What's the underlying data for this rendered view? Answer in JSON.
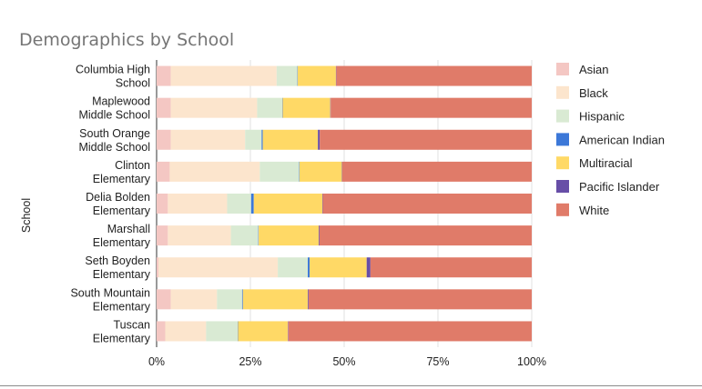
{
  "chart_data": {
    "type": "bar",
    "orientation": "horizontal",
    "stacked": "percent",
    "title": "Demographics by School",
    "xlabel": "",
    "ylabel": "School",
    "xlim": [
      0,
      100
    ],
    "x_ticks": [
      "0%",
      "25%",
      "50%",
      "75%",
      "100%"
    ],
    "grid": true,
    "legend_position": "right",
    "categories": [
      [
        "Columbia High",
        "School"
      ],
      [
        "Maplewood",
        "Middle School"
      ],
      [
        "South Orange",
        "Middle School"
      ],
      [
        "Clinton",
        "Elementary"
      ],
      [
        "Delia Bolden",
        "Elementary"
      ],
      [
        "Marshall",
        "Elementary"
      ],
      [
        "Seth Boyden",
        "Elementary"
      ],
      [
        "South Mountain",
        "Elementary"
      ],
      [
        "Tuscan",
        "Elementary"
      ]
    ],
    "series": [
      {
        "name": "Asian",
        "color": "#f4c7c3",
        "values": [
          3.8,
          3.8,
          3.8,
          3.5,
          3.0,
          3.0,
          0.5,
          3.8,
          2.3
        ]
      },
      {
        "name": "Black",
        "color": "#fce5cd",
        "values": [
          28.2,
          23.0,
          19.8,
          24.0,
          15.8,
          16.8,
          31.8,
          12.3,
          10.9
        ]
      },
      {
        "name": "Hispanic",
        "color": "#d9ead3",
        "values": [
          5.5,
          6.7,
          4.4,
          10.5,
          6.4,
          7.3,
          8.0,
          6.7,
          8.4
        ]
      },
      {
        "name": "American Indian",
        "color": "#3c78d8",
        "values": [
          0.1,
          0.1,
          0.3,
          0.1,
          0.7,
          0.1,
          0.5,
          0.2,
          0.1
        ]
      },
      {
        "name": "Multiracial",
        "color": "#ffd966",
        "values": [
          10.2,
          12.7,
          14.7,
          11.3,
          18.3,
          16.0,
          15.2,
          17.3,
          13.3
        ]
      },
      {
        "name": "Pacific Islander",
        "color": "#674ea7",
        "values": [
          0.1,
          0.1,
          0.5,
          0.1,
          0.1,
          0.2,
          1.0,
          0.2,
          0.1
        ]
      },
      {
        "name": "White",
        "color": "#e07b69",
        "values": [
          52.1,
          53.6,
          56.5,
          50.5,
          55.7,
          56.6,
          43.0,
          59.5,
          64.9
        ]
      }
    ]
  }
}
